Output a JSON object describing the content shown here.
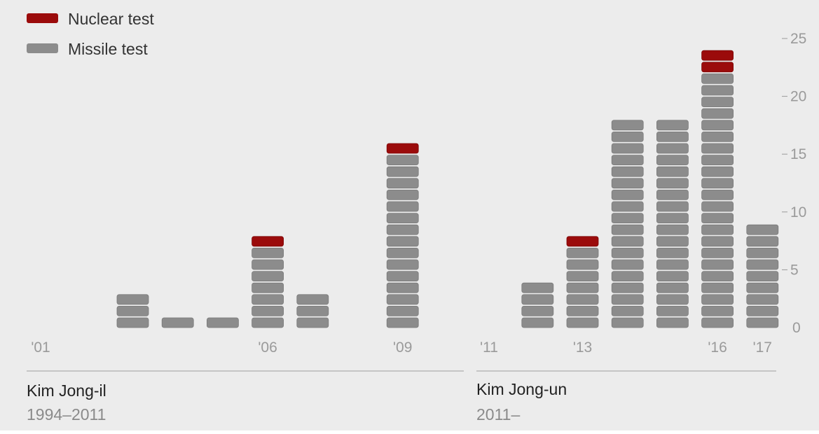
{
  "chart_data": {
    "type": "bar",
    "stacked": true,
    "categories": [
      "'01",
      "'02",
      "'03",
      "'04",
      "'05",
      "'06",
      "'07",
      "'08",
      "'09",
      "'10",
      "'11",
      "'12",
      "'13",
      "'14",
      "'15",
      "'16",
      "'17"
    ],
    "x_tick_labels": [
      "'01",
      "",
      "",
      "",
      "",
      "'06",
      "",
      "",
      "'09",
      "",
      "'11",
      "",
      "'13",
      "",
      "",
      "'16",
      "'17"
    ],
    "series": [
      {
        "name": "Missile test",
        "color": "#8c8c8c",
        "values": [
          0,
          0,
          3,
          1,
          1,
          7,
          3,
          0,
          15,
          0,
          0,
          4,
          7,
          18,
          18,
          22,
          9
        ]
      },
      {
        "name": "Nuclear test",
        "color": "#9b0b0b",
        "values": [
          0,
          0,
          0,
          0,
          0,
          1,
          0,
          0,
          1,
          0,
          0,
          0,
          1,
          0,
          0,
          2,
          0
        ]
      }
    ],
    "y_ticks": [
      "0",
      "5",
      "10",
      "15",
      "20",
      "25"
    ],
    "ylim": [
      0,
      25
    ],
    "legend": {
      "position": "top-left",
      "items": [
        {
          "label": "Nuclear test",
          "color": "#9b0b0b"
        },
        {
          "label": "Missile test",
          "color": "#8c8c8c"
        }
      ]
    },
    "eras": [
      {
        "name": "Kim Jong-il",
        "period": "1994–2011"
      },
      {
        "name": "Kim Jong-un",
        "period": "2011–"
      }
    ]
  }
}
